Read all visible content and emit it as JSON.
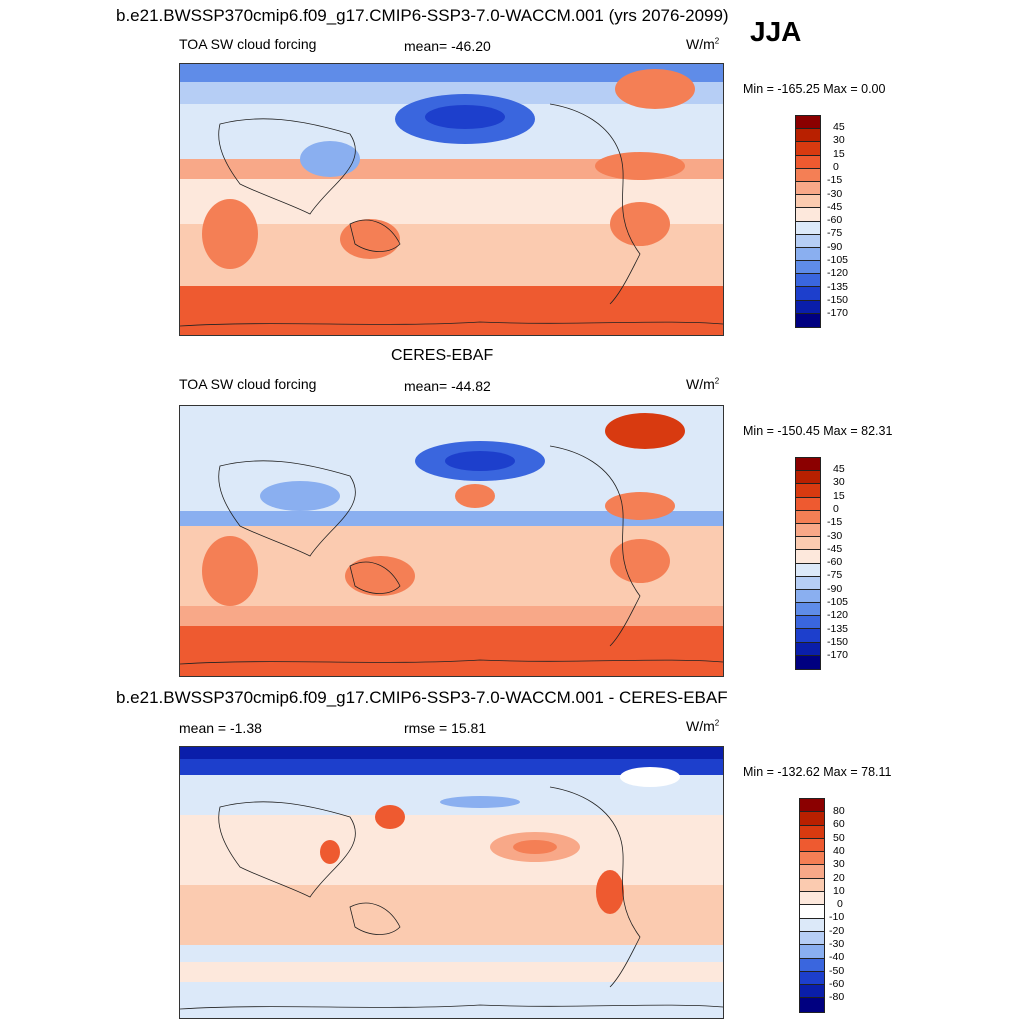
{
  "header": {
    "title": "b.e21.BWSSP370cmip6.f09_g17.CMIP6-SSP3-7.0-WACCM.001 (yrs 2076-2099)",
    "season": "JJA"
  },
  "panels": [
    {
      "variable": "TOA SW cloud forcing",
      "stat_left": "",
      "mean_label": "mean= -46.20",
      "units_text": "W/m",
      "units_sup": "2",
      "minmax": "Min = -165.25 Max =   0.00",
      "colorbar_labels": [
        "45",
        "30",
        "15",
        "0",
        "-15",
        "-30",
        "-45",
        "-60",
        "-75",
        "-90",
        "-105",
        "-120",
        "-135",
        "-150",
        "-170"
      ]
    },
    {
      "heading": "CERES-EBAF",
      "variable": "TOA SW cloud forcing",
      "mean_label": "mean= -44.82",
      "units_text": "W/m",
      "units_sup": "2",
      "minmax": "Min = -150.45 Max =  82.31",
      "colorbar_labels": [
        "45",
        "30",
        "15",
        "0",
        "-15",
        "-30",
        "-45",
        "-60",
        "-75",
        "-90",
        "-105",
        "-120",
        "-135",
        "-150",
        "-170"
      ]
    },
    {
      "heading": "b.e21.BWSSP370cmip6.f09_g17.CMIP6-SSP3-7.0-WACCM.001 - CERES-EBAF",
      "mean_label": "mean =  -1.38",
      "rmse_label": "rmse =  15.81",
      "units_text": "W/m",
      "units_sup": "2",
      "minmax": "Min = -132.62 Max =  78.11",
      "colorbar_labels": [
        "80",
        "60",
        "50",
        "40",
        "30",
        "20",
        "10",
        "0",
        "-10",
        "-20",
        "-30",
        "-40",
        "-50",
        "-60",
        "-80"
      ]
    }
  ],
  "colors": {
    "abs_scale": [
      "#8b0000",
      "#b82000",
      "#d83a10",
      "#ee5a30",
      "#f47f55",
      "#f8a888",
      "#fbcbb0",
      "#fde8dc",
      "#dce9f9",
      "#b6cef5",
      "#8aaff0",
      "#5f8ce8",
      "#3a66de",
      "#1d3fcc",
      "#0a1eaa",
      "#000080"
    ],
    "diff_scale": [
      "#8b0000",
      "#b82000",
      "#d83a10",
      "#ee5a30",
      "#f47f55",
      "#f8a888",
      "#fbcbb0",
      "#fde8dc",
      "#dce9f9",
      "#b6cef5",
      "#8aaff0",
      "#5f8ce8",
      "#3a66de",
      "#1d3fcc",
      "#0a1eaa",
      "#000080"
    ],
    "map_border": "#333333"
  }
}
